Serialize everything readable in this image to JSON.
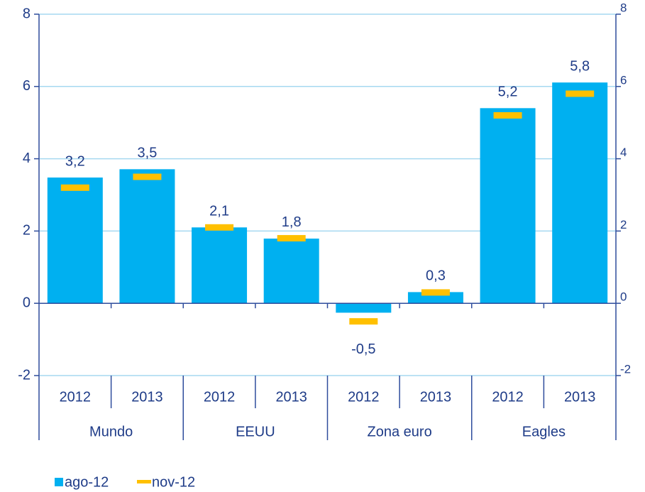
{
  "chart_data": {
    "type": "bar",
    "categories": [
      "2012",
      "2013",
      "2012",
      "2013",
      "2012",
      "2013",
      "2012",
      "2013"
    ],
    "groups": [
      "Mundo",
      "EEUU",
      "Zona euro",
      "Eagles"
    ],
    "series": [
      {
        "name": "ago-12",
        "color": "#00b0f0",
        "values": [
          3.48,
          3.71,
          2.1,
          1.79,
          -0.26,
          0.31,
          5.4,
          6.11
        ]
      },
      {
        "name": "nov-12",
        "color": "#ffc000",
        "values": [
          3.2,
          3.5,
          2.1,
          1.8,
          -0.5,
          0.3,
          5.2,
          5.8
        ],
        "value_labels": [
          "3,2",
          "3,5",
          "2,1",
          "1,8",
          "-0,5",
          "0,3",
          "5,2",
          "5,8"
        ]
      }
    ],
    "ylim": [
      -2,
      8
    ],
    "yticks": [
      -2,
      0,
      2,
      4,
      6,
      8
    ],
    "y2lim": [
      -2,
      8
    ],
    "y2ticks": [
      -2,
      0,
      2,
      4,
      6,
      8
    ],
    "grid": true
  }
}
